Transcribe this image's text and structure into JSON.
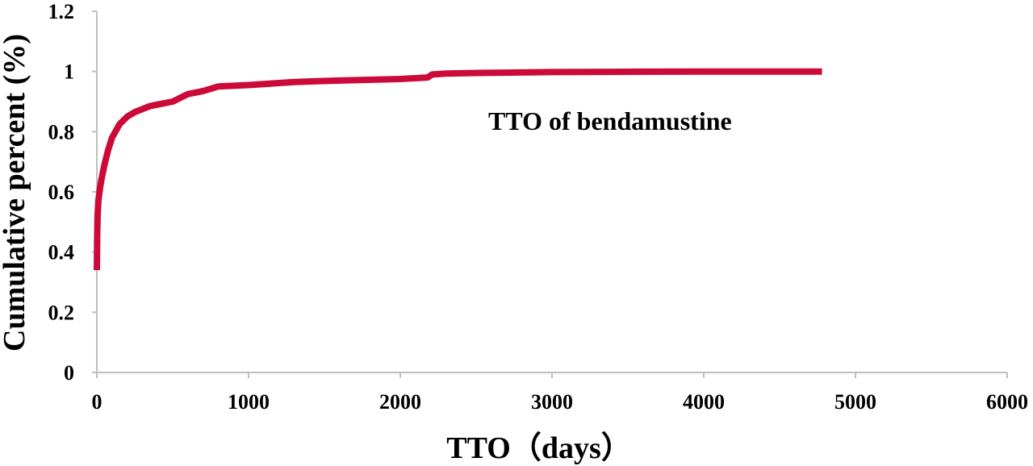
{
  "chart_data": {
    "type": "line",
    "title": "",
    "xlabel": "TTO（days）",
    "ylabel": "Cumulative percent (%)",
    "xlim": [
      0,
      6000
    ],
    "ylim": [
      0,
      1.2
    ],
    "x_ticks": [
      "0",
      "1000",
      "2000",
      "3000",
      "4000",
      "5000",
      "6000"
    ],
    "y_ticks": [
      "0",
      "0.2",
      "0.4",
      "0.6",
      "0.8",
      "1",
      "1.2"
    ],
    "grid": false,
    "legend": "none",
    "annotation": "TTO  of  bendamustine",
    "series": [
      {
        "color": "#cc0a3a",
        "x": [
          0,
          2,
          5,
          10,
          20,
          30,
          50,
          75,
          100,
          150,
          200,
          250,
          300,
          350,
          400,
          500,
          600,
          700,
          800,
          1000,
          1300,
          1600,
          2000,
          2180,
          2210,
          2300,
          2500,
          3000,
          3500,
          4000,
          4500,
          4780
        ],
        "y": [
          0.34,
          0.45,
          0.52,
          0.57,
          0.61,
          0.64,
          0.69,
          0.74,
          0.78,
          0.825,
          0.85,
          0.865,
          0.875,
          0.885,
          0.89,
          0.9,
          0.925,
          0.935,
          0.95,
          0.955,
          0.965,
          0.97,
          0.975,
          0.98,
          0.99,
          0.993,
          0.995,
          0.998,
          0.999,
          1.0,
          1.0,
          1.0
        ]
      }
    ]
  }
}
